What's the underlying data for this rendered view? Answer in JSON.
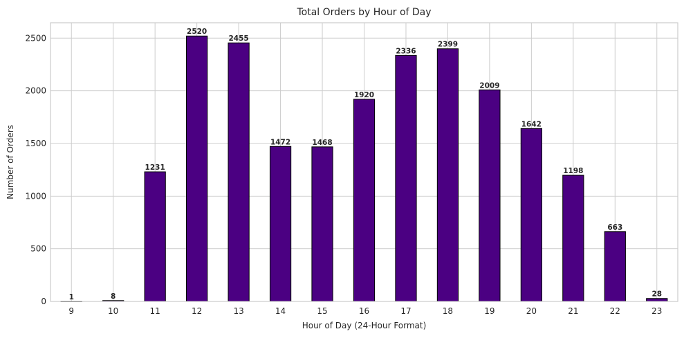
{
  "chart_data": {
    "type": "bar",
    "title": "Total Orders by Hour of Day",
    "xlabel": "Hour of Day (24-Hour Format)",
    "ylabel": "Number of Orders",
    "categories": [
      "9",
      "10",
      "11",
      "12",
      "13",
      "14",
      "15",
      "16",
      "17",
      "18",
      "19",
      "20",
      "21",
      "22",
      "23"
    ],
    "values": [
      1,
      8,
      1231,
      2520,
      2455,
      1472,
      1468,
      1920,
      2336,
      2399,
      2009,
      1642,
      1198,
      663,
      28
    ],
    "ylim": [
      0,
      2646
    ],
    "yticks": [
      0,
      500,
      1000,
      1500,
      2000,
      2500
    ],
    "grid": true,
    "legend": "none",
    "bar_color": "#4b0082",
    "bar_edge_color": "#000000",
    "data_labels": true
  }
}
